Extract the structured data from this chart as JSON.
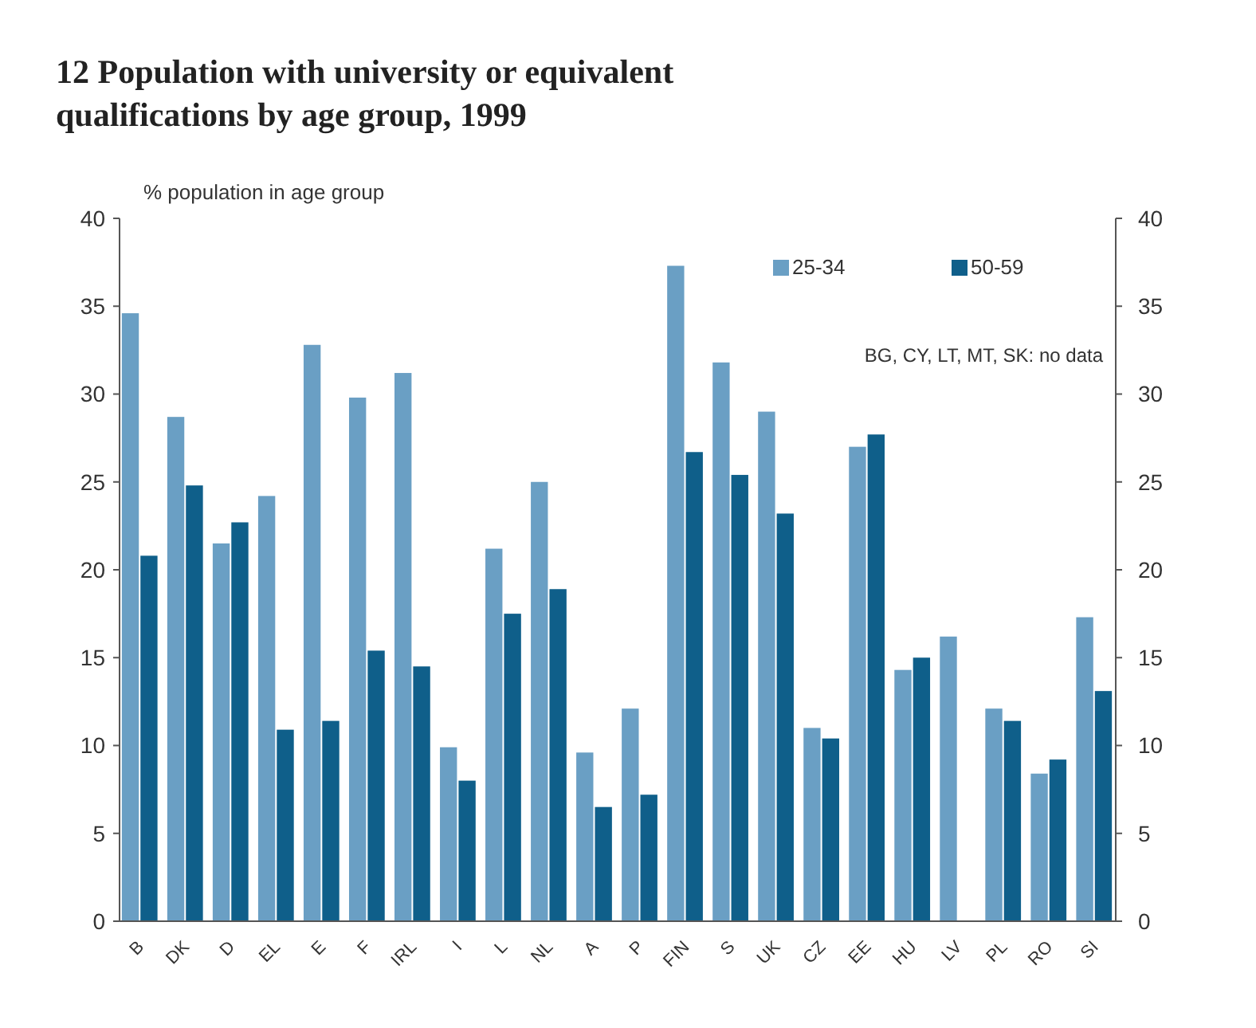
{
  "chart_data": {
    "type": "bar",
    "title": "12 Population with university or equivalent qualifications by age group, 1999",
    "ylabel": "% population in age group",
    "categories": [
      "B",
      "DK",
      "D",
      "EL",
      "E",
      "F",
      "IRL",
      "I",
      "L",
      "NL",
      "A",
      "P",
      "FIN",
      "S",
      "UK",
      "CZ",
      "EE",
      "HU",
      "LV",
      "PL",
      "RO",
      "SI"
    ],
    "series": [
      {
        "name": "25-34",
        "color": "#6a9fc4",
        "values": [
          34.6,
          28.7,
          21.5,
          24.2,
          32.8,
          29.8,
          31.2,
          9.9,
          21.2,
          25.0,
          9.6,
          12.1,
          37.3,
          31.8,
          29.0,
          11.0,
          27.0,
          14.3,
          16.2,
          12.1,
          8.4,
          17.3
        ]
      },
      {
        "name": "50-59",
        "color": "#0f5f8a",
        "values": [
          20.8,
          24.8,
          22.7,
          10.9,
          11.4,
          15.4,
          14.5,
          8.0,
          17.5,
          18.9,
          6.5,
          7.2,
          26.7,
          25.4,
          23.2,
          10.4,
          27.7,
          15.0,
          null,
          11.4,
          9.2,
          13.1
        ]
      }
    ],
    "ylim": [
      0,
      40
    ],
    "yticks": [
      0,
      5,
      10,
      15,
      20,
      25,
      30,
      35,
      40
    ],
    "y2lim": [
      0,
      40
    ],
    "y2ticks": [
      0,
      5,
      10,
      15,
      20,
      25,
      30,
      35,
      40
    ],
    "legend": "top right",
    "grid": false,
    "annotations": [
      "BG, CY, LT, MT, SK: no data"
    ]
  }
}
